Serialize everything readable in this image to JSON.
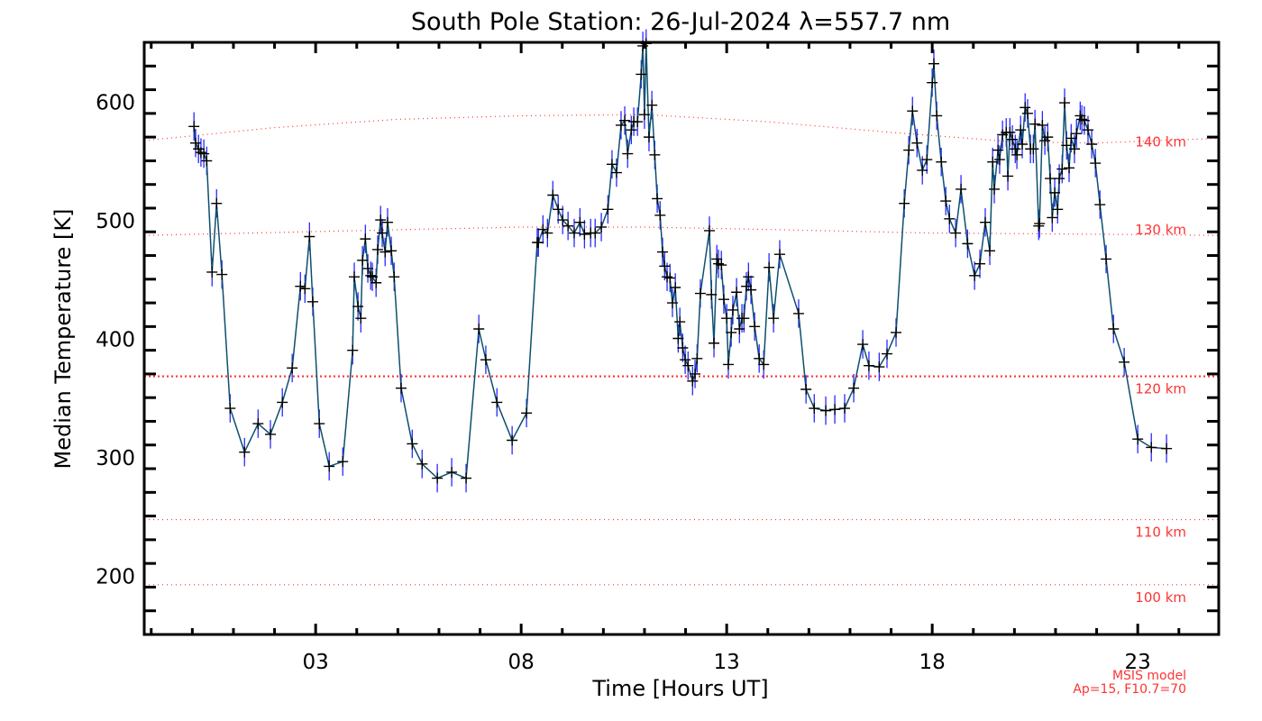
{
  "chart_data": {
    "type": "line",
    "title": "South Pole Station: 26-Jul-2024 λ=557.7 nm",
    "xlabel": "Time [Hours UT]",
    "ylabel": "Median Temperature [K]",
    "xlim": [
      -1.17,
      24.97
    ],
    "ylim": [
      150,
      650
    ],
    "xticks": [
      {
        "v": 3,
        "label": "03"
      },
      {
        "v": 8,
        "label": "08"
      },
      {
        "v": 13,
        "label": "13"
      },
      {
        "v": 18,
        "label": "18"
      },
      {
        "v": 23,
        "label": "23"
      }
    ],
    "yticks": [
      {
        "v": 200,
        "label": "200"
      },
      {
        "v": 300,
        "label": "300"
      },
      {
        "v": 400,
        "label": "400"
      },
      {
        "v": 500,
        "label": "500"
      },
      {
        "v": 600,
        "label": "600"
      }
    ],
    "x_minor_step": 1,
    "y_minor_step": 20,
    "grid": false,
    "colors": {
      "line": "#0d4f6e",
      "errorbar": "#2a2aff",
      "marker": "#000000",
      "model": "#ff3333"
    },
    "error_bar_K": 12,
    "series": [
      {
        "name": "Median Temperature",
        "points": [
          [
            0.04,
            579
          ],
          [
            0.08,
            565
          ],
          [
            0.15,
            560
          ],
          [
            0.21,
            557
          ],
          [
            0.28,
            556
          ],
          [
            0.35,
            550
          ],
          [
            0.48,
            456
          ],
          [
            0.59,
            514
          ],
          [
            0.72,
            454
          ],
          [
            0.92,
            341
          ],
          [
            1.27,
            304
          ],
          [
            1.6,
            328
          ],
          [
            1.9,
            319
          ],
          [
            2.19,
            346
          ],
          [
            2.43,
            375
          ],
          [
            2.63,
            444
          ],
          [
            2.74,
            442
          ],
          [
            2.85,
            486
          ],
          [
            2.93,
            431
          ],
          [
            3.09,
            328
          ],
          [
            3.33,
            292
          ],
          [
            3.66,
            296
          ],
          [
            3.9,
            390
          ],
          [
            3.94,
            452
          ],
          [
            4.03,
            427
          ],
          [
            4.1,
            417
          ],
          [
            4.14,
            466
          ],
          [
            4.21,
            484
          ],
          [
            4.27,
            459
          ],
          [
            4.34,
            453
          ],
          [
            4.38,
            452
          ],
          [
            4.47,
            447
          ],
          [
            4.51,
            475
          ],
          [
            4.58,
            500
          ],
          [
            4.62,
            489
          ],
          [
            4.69,
            473
          ],
          [
            4.75,
            498
          ],
          [
            4.84,
            474
          ],
          [
            4.91,
            452
          ],
          [
            5.08,
            358
          ],
          [
            5.35,
            311
          ],
          [
            5.59,
            294
          ],
          [
            5.96,
            282
          ],
          [
            6.31,
            287
          ],
          [
            6.66,
            282
          ],
          [
            6.97,
            408
          ],
          [
            7.14,
            382
          ],
          [
            7.41,
            346
          ],
          [
            7.78,
            314
          ],
          [
            8.13,
            337
          ],
          [
            8.39,
            481
          ],
          [
            8.42,
            481
          ],
          [
            8.53,
            492
          ],
          [
            8.64,
            489
          ],
          [
            8.77,
            521
          ],
          [
            8.9,
            509
          ],
          [
            9.01,
            500
          ],
          [
            9.14,
            495
          ],
          [
            9.29,
            489
          ],
          [
            9.43,
            498
          ],
          [
            9.54,
            488
          ],
          [
            9.69,
            489
          ],
          [
            9.8,
            489
          ],
          [
            9.95,
            494
          ],
          [
            10.11,
            509
          ],
          [
            10.21,
            547
          ],
          [
            10.32,
            540
          ],
          [
            10.43,
            580
          ],
          [
            10.52,
            584
          ],
          [
            10.59,
            556
          ],
          [
            10.68,
            576
          ],
          [
            10.74,
            583
          ],
          [
            10.83,
            583
          ],
          [
            10.92,
            623
          ],
          [
            10.96,
            647
          ],
          [
            11.0,
            589
          ],
          [
            11.04,
            649
          ],
          [
            11.11,
            570
          ],
          [
            11.18,
            597
          ],
          [
            11.25,
            555
          ],
          [
            11.31,
            518
          ],
          [
            11.38,
            504
          ],
          [
            11.44,
            473
          ],
          [
            11.49,
            461
          ],
          [
            11.55,
            452
          ],
          [
            11.62,
            451
          ],
          [
            11.68,
            430
          ],
          [
            11.75,
            443
          ],
          [
            11.82,
            400
          ],
          [
            11.86,
            414
          ],
          [
            11.93,
            392
          ],
          [
            11.99,
            382
          ],
          [
            12.06,
            377
          ],
          [
            12.17,
            364
          ],
          [
            12.23,
            370
          ],
          [
            12.28,
            383
          ],
          [
            12.36,
            438
          ],
          [
            12.58,
            491
          ],
          [
            12.63,
            437
          ],
          [
            12.69,
            396
          ],
          [
            12.76,
            467
          ],
          [
            12.8,
            463
          ],
          [
            12.87,
            462
          ],
          [
            12.93,
            433
          ],
          [
            13.0,
            417
          ],
          [
            13.04,
            378
          ],
          [
            13.11,
            405
          ],
          [
            13.15,
            424
          ],
          [
            13.24,
            439
          ],
          [
            13.31,
            408
          ],
          [
            13.37,
            417
          ],
          [
            13.42,
            417
          ],
          [
            13.48,
            444
          ],
          [
            13.53,
            452
          ],
          [
            13.59,
            441
          ],
          [
            13.68,
            410
          ],
          [
            13.79,
            383
          ],
          [
            13.9,
            378
          ],
          [
            14.03,
            460
          ],
          [
            14.14,
            417
          ],
          [
            14.29,
            471
          ],
          [
            14.75,
            421
          ],
          [
            14.93,
            357
          ],
          [
            15.13,
            341
          ],
          [
            15.41,
            339
          ],
          [
            15.63,
            340
          ],
          [
            15.87,
            341
          ],
          [
            16.09,
            358
          ],
          [
            16.31,
            395
          ],
          [
            16.46,
            377
          ],
          [
            16.71,
            376
          ],
          [
            16.9,
            387
          ],
          [
            17.12,
            405
          ],
          [
            17.32,
            514
          ],
          [
            17.43,
            559
          ],
          [
            17.52,
            592
          ],
          [
            17.63,
            565
          ],
          [
            17.76,
            542
          ],
          [
            17.87,
            551
          ],
          [
            18.0,
            616
          ],
          [
            18.04,
            632
          ],
          [
            18.11,
            588
          ],
          [
            18.22,
            549
          ],
          [
            18.33,
            516
          ],
          [
            18.42,
            501
          ],
          [
            18.57,
            489
          ],
          [
            18.7,
            526
          ],
          [
            18.86,
            480
          ],
          [
            19.03,
            453
          ],
          [
            19.16,
            463
          ],
          [
            19.29,
            498
          ],
          [
            19.4,
            474
          ],
          [
            19.47,
            549
          ],
          [
            19.51,
            526
          ],
          [
            19.6,
            559
          ],
          [
            19.64,
            551
          ],
          [
            19.71,
            572
          ],
          [
            19.8,
            574
          ],
          [
            19.84,
            537
          ],
          [
            19.89,
            574
          ],
          [
            19.95,
            568
          ],
          [
            20.02,
            560
          ],
          [
            20.06,
            555
          ],
          [
            20.15,
            576
          ],
          [
            20.19,
            564
          ],
          [
            20.26,
            595
          ],
          [
            20.32,
            590
          ],
          [
            20.39,
            560
          ],
          [
            20.46,
            560
          ],
          [
            20.5,
            581
          ],
          [
            20.59,
            495
          ],
          [
            20.61,
            497
          ],
          [
            20.68,
            580
          ],
          [
            20.74,
            567
          ],
          [
            20.81,
            570
          ],
          [
            20.87,
            535
          ],
          [
            20.92,
            502
          ],
          [
            20.98,
            523
          ],
          [
            21.05,
            509
          ],
          [
            21.09,
            535
          ],
          [
            21.16,
            543
          ],
          [
            21.22,
            599
          ],
          [
            21.27,
            563
          ],
          [
            21.33,
            544
          ],
          [
            21.38,
            569
          ],
          [
            21.46,
            560
          ],
          [
            21.51,
            573
          ],
          [
            21.6,
            588
          ],
          [
            21.64,
            585
          ],
          [
            21.7,
            584
          ],
          [
            21.79,
            576
          ],
          [
            21.88,
            564
          ],
          [
            21.97,
            548
          ],
          [
            22.08,
            513
          ],
          [
            22.23,
            467
          ],
          [
            22.41,
            408
          ],
          [
            22.67,
            380
          ],
          [
            23.0,
            315
          ],
          [
            23.33,
            308
          ],
          [
            23.7,
            307
          ]
        ]
      }
    ],
    "model": {
      "note_line1": "MSIS model",
      "note_line2": "Ap=15, F10.7=70",
      "curves": [
        {
          "label": "140 km",
          "points": [
            [
              -1.17,
              567
            ],
            [
              2,
              578
            ],
            [
              5,
              585
            ],
            [
              8,
              588
            ],
            [
              11,
              589
            ],
            [
              14,
              583
            ],
            [
              17,
              574
            ],
            [
              20,
              566
            ],
            [
              22,
              565
            ],
            [
              24.97,
              569
            ]
          ]
        },
        {
          "label": "130 km",
          "points": [
            [
              -1.17,
              487
            ],
            [
              4,
              491
            ],
            [
              8,
              494
            ],
            [
              11,
              494
            ],
            [
              14,
              492
            ],
            [
              18,
              489
            ],
            [
              22,
              488
            ],
            [
              24.97,
              487
            ]
          ]
        },
        {
          "label": "120 km",
          "points": [
            [
              -1.17,
              368
            ],
            [
              24.97,
              368
            ]
          ],
          "bold": true
        },
        {
          "label": "110 km",
          "points": [
            [
              -1.17,
              247
            ],
            [
              24.97,
              247
            ]
          ]
        },
        {
          "label": "100 km",
          "points": [
            [
              -1.17,
              192
            ],
            [
              24.97,
              192
            ]
          ]
        }
      ]
    }
  }
}
